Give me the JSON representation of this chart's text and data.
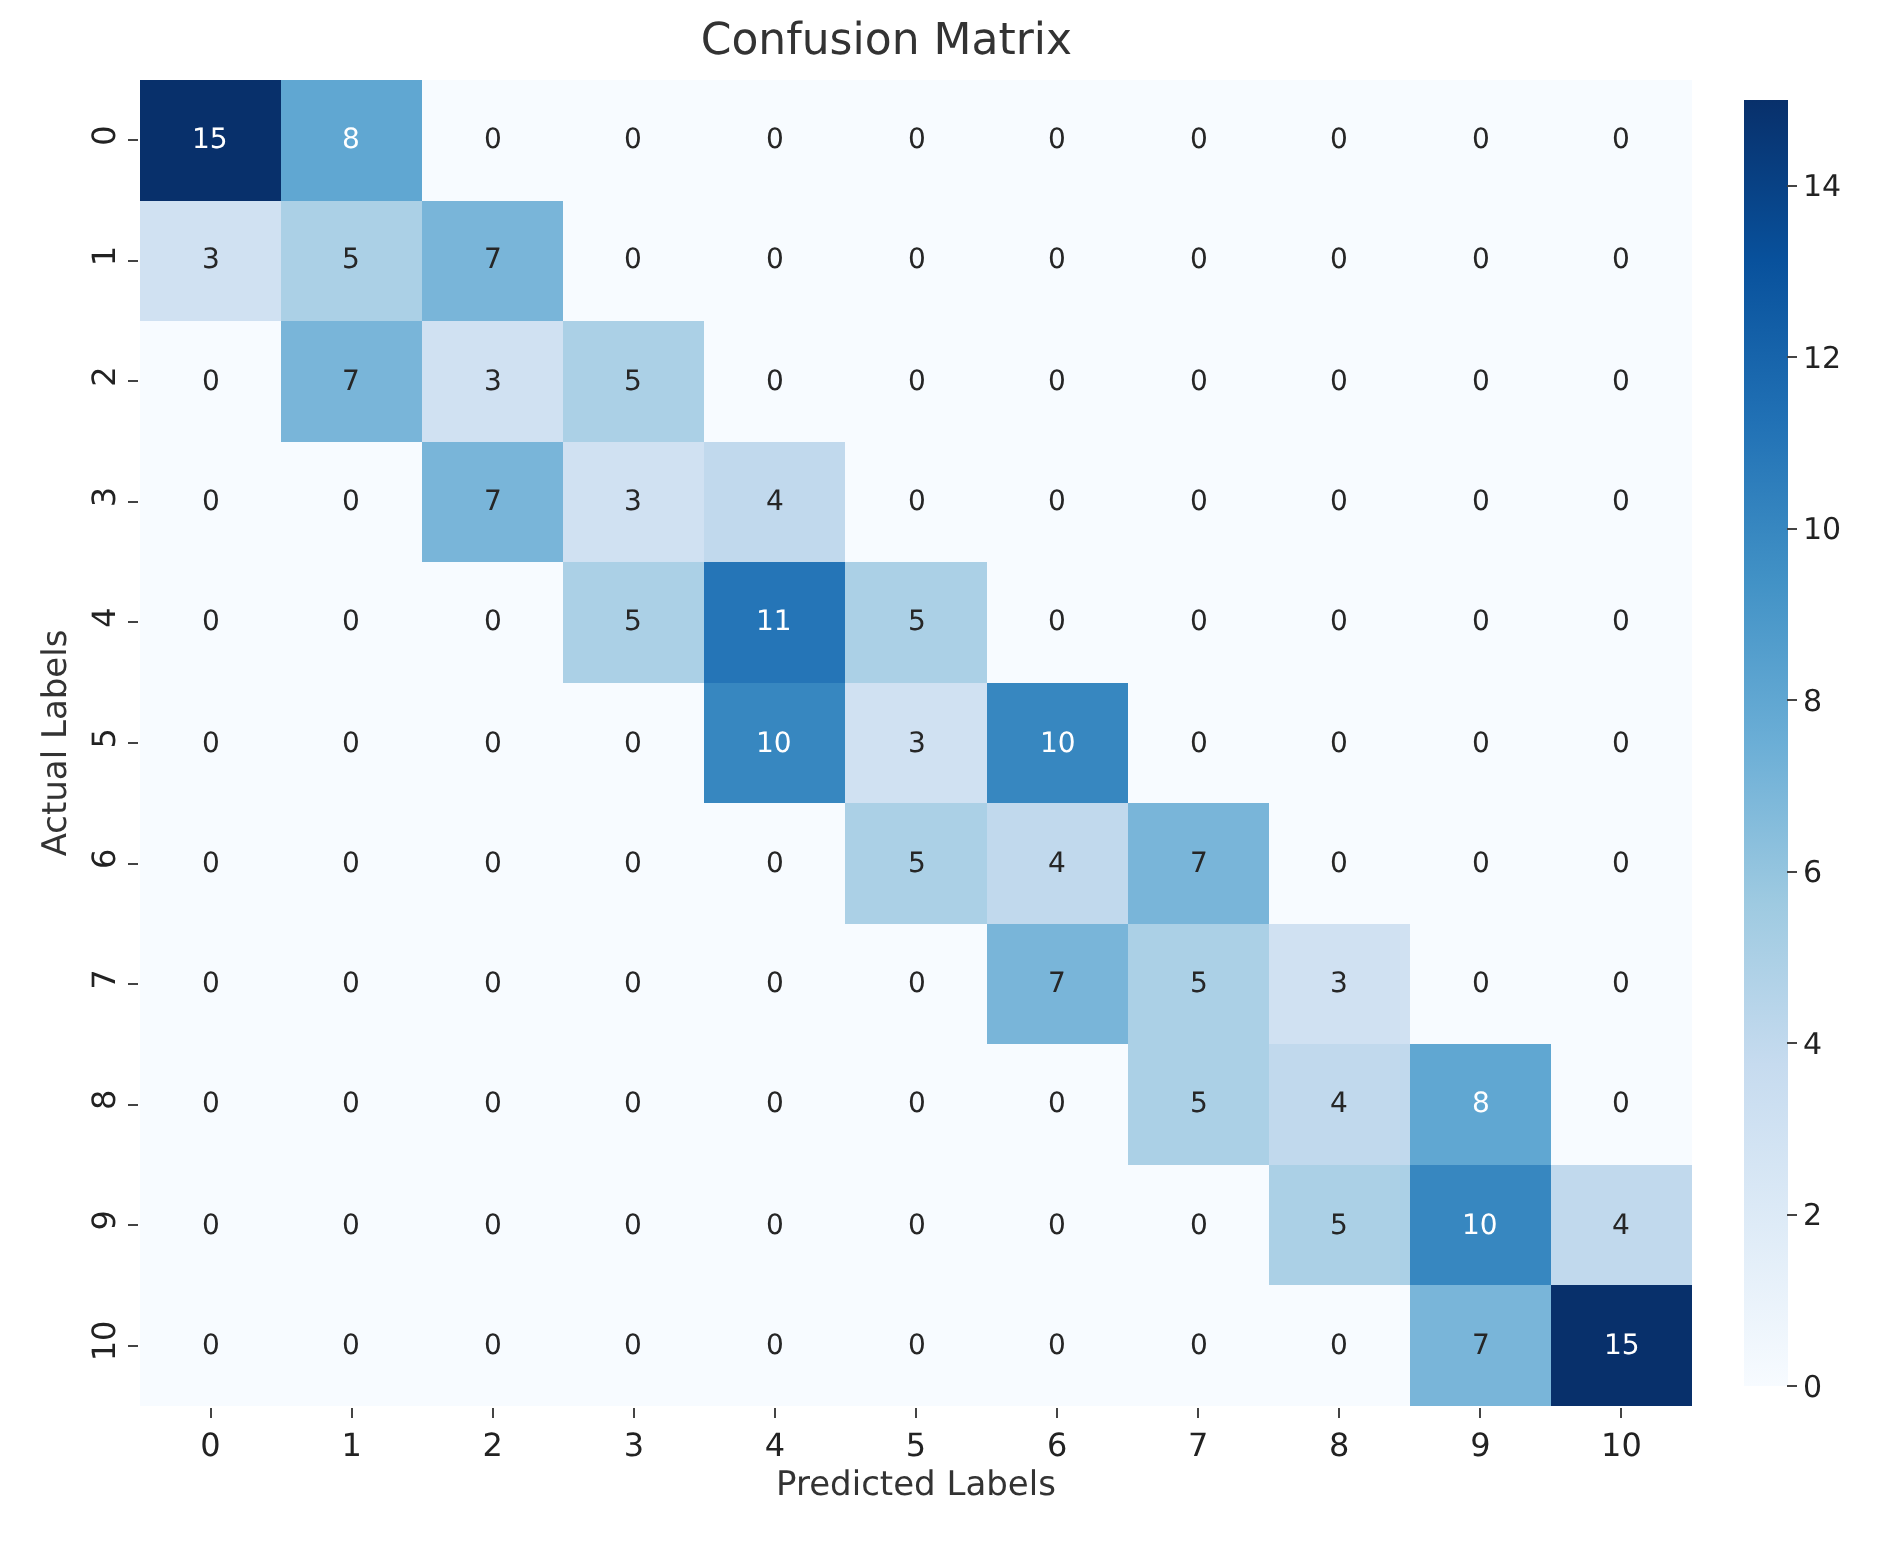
{
  "chart_data": {
    "type": "heatmap",
    "title": "Confusion Matrix",
    "xlabel": "Predicted Labels",
    "ylabel": "Actual Labels",
    "categories": [
      "0",
      "1",
      "2",
      "3",
      "4",
      "5",
      "6",
      "7",
      "8",
      "9",
      "10"
    ],
    "y_categories": [
      "0",
      "1",
      "2",
      "3",
      "4",
      "5",
      "6",
      "7",
      "8",
      "9",
      "10"
    ],
    "cells": [
      [
        15,
        8,
        0,
        0,
        0,
        0,
        0,
        0,
        0,
        0,
        0
      ],
      [
        3,
        5,
        7,
        0,
        0,
        0,
        0,
        0,
        0,
        0,
        0
      ],
      [
        0,
        7,
        3,
        5,
        0,
        0,
        0,
        0,
        0,
        0,
        0
      ],
      [
        0,
        0,
        7,
        3,
        4,
        0,
        0,
        0,
        0,
        0,
        0
      ],
      [
        0,
        0,
        0,
        5,
        11,
        5,
        0,
        0,
        0,
        0,
        0
      ],
      [
        0,
        0,
        0,
        0,
        10,
        3,
        10,
        0,
        0,
        0,
        0
      ],
      [
        0,
        0,
        0,
        0,
        0,
        5,
        4,
        7,
        0,
        0,
        0
      ],
      [
        0,
        0,
        0,
        0,
        0,
        0,
        7,
        5,
        3,
        0,
        0
      ],
      [
        0,
        0,
        0,
        0,
        0,
        0,
        0,
        5,
        4,
        8,
        0
      ],
      [
        0,
        0,
        0,
        0,
        0,
        0,
        0,
        0,
        5,
        10,
        4
      ],
      [
        0,
        0,
        0,
        0,
        0,
        0,
        0,
        0,
        0,
        7,
        15
      ]
    ],
    "data_labels": true,
    "clim": [
      0,
      15
    ],
    "cticks": [
      0,
      2,
      4,
      6,
      8,
      10,
      12,
      14
    ]
  }
}
